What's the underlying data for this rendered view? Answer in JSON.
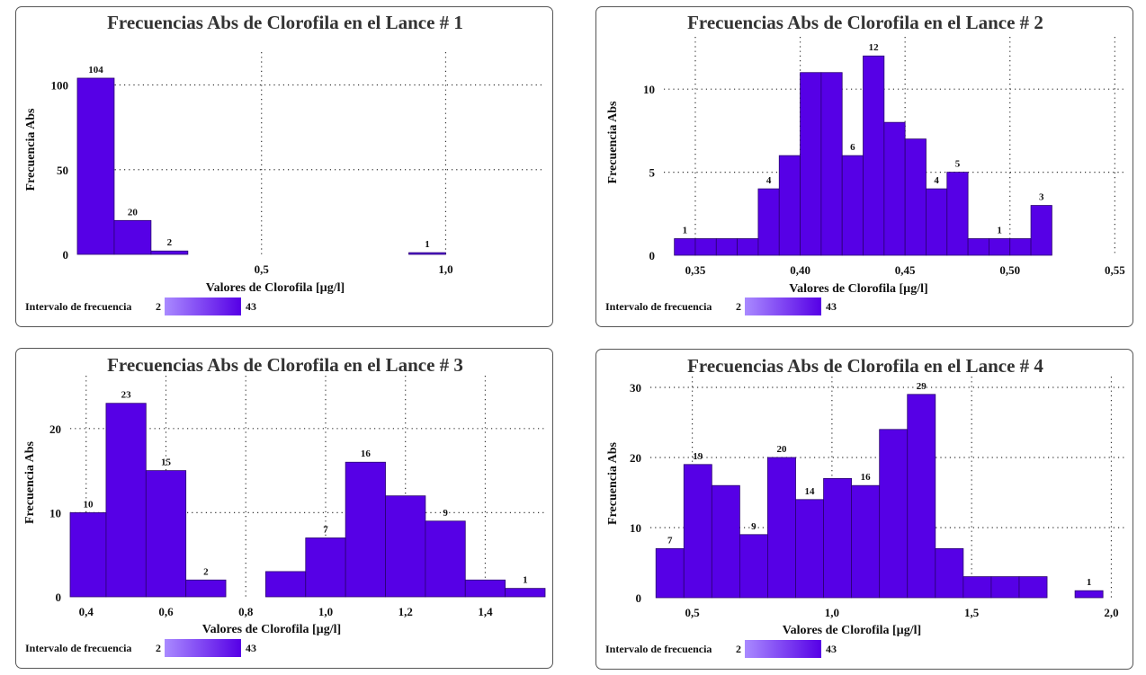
{
  "colors": {
    "bar": "#5600e6",
    "bar_stroke": "#2a0070",
    "legend_start": "#a98aff",
    "legend_end": "#5600e6"
  },
  "chart_data": [
    {
      "type": "bar",
      "title": "Frecuencias Abs de Clorofila en el Lance # 1",
      "xlabel": "Valores de Clorofila [µg/l]",
      "ylabel": "Frecuencia Abs",
      "xlim": [
        0.0,
        1.27
      ],
      "ylim": [
        0,
        113
      ],
      "xticks": [
        {
          "v": 0.5,
          "label": "0,5"
        },
        {
          "v": 1.0,
          "label": "1,0"
        }
      ],
      "yticks": [
        {
          "v": 0,
          "label": "0"
        },
        {
          "v": 50,
          "label": "50"
        },
        {
          "v": 100,
          "label": "100"
        }
      ],
      "grid": true,
      "bins": [
        {
          "x0": 0.0,
          "x1": 0.1,
          "value": 104,
          "label": "104"
        },
        {
          "x0": 0.1,
          "x1": 0.2,
          "value": 20,
          "label": "20"
        },
        {
          "x0": 0.2,
          "x1": 0.3,
          "value": 2,
          "label": "2"
        },
        {
          "x0": 0.9,
          "x1": 1.0,
          "value": 1,
          "label": "1"
        }
      ],
      "legend": {
        "label": "Intervalo de frecuencia",
        "min": "2",
        "max": "43"
      }
    },
    {
      "type": "bar",
      "title": "Frecuencias Abs de Clorofila en el Lance # 2",
      "xlabel": "Valores de Clorofila [µg/l]",
      "ylabel": "Frecuencia Abs",
      "xlim": [
        0.335,
        0.555
      ],
      "ylim": [
        0,
        12.5
      ],
      "xticks": [
        {
          "v": 0.35,
          "label": "0,35"
        },
        {
          "v": 0.4,
          "label": "0,40"
        },
        {
          "v": 0.45,
          "label": "0,45"
        },
        {
          "v": 0.5,
          "label": "0,50"
        },
        {
          "v": 0.55,
          "label": "0,55"
        }
      ],
      "yticks": [
        {
          "v": 0,
          "label": "0"
        },
        {
          "v": 5,
          "label": "5"
        },
        {
          "v": 10,
          "label": "10"
        }
      ],
      "grid": true,
      "bins": [
        {
          "x0": 0.34,
          "x1": 0.35,
          "value": 1,
          "label": "1"
        },
        {
          "x0": 0.35,
          "x1": 0.36,
          "value": 1,
          "label": ""
        },
        {
          "x0": 0.36,
          "x1": 0.37,
          "value": 1,
          "label": ""
        },
        {
          "x0": 0.37,
          "x1": 0.38,
          "value": 1,
          "label": ""
        },
        {
          "x0": 0.38,
          "x1": 0.39,
          "value": 4,
          "label": "4"
        },
        {
          "x0": 0.39,
          "x1": 0.4,
          "value": 6,
          "label": ""
        },
        {
          "x0": 0.4,
          "x1": 0.41,
          "value": 11,
          "label": ""
        },
        {
          "x0": 0.41,
          "x1": 0.42,
          "value": 11,
          "label": ""
        },
        {
          "x0": 0.42,
          "x1": 0.43,
          "value": 6,
          "label": "6"
        },
        {
          "x0": 0.43,
          "x1": 0.44,
          "value": 12,
          "label": "12"
        },
        {
          "x0": 0.44,
          "x1": 0.45,
          "value": 8,
          "label": ""
        },
        {
          "x0": 0.45,
          "x1": 0.46,
          "value": 7,
          "label": ""
        },
        {
          "x0": 0.46,
          "x1": 0.47,
          "value": 4,
          "label": "4"
        },
        {
          "x0": 0.47,
          "x1": 0.48,
          "value": 5,
          "label": "5"
        },
        {
          "x0": 0.48,
          "x1": 0.49,
          "value": 1,
          "label": ""
        },
        {
          "x0": 0.49,
          "x1": 0.5,
          "value": 1,
          "label": "1"
        },
        {
          "x0": 0.5,
          "x1": 0.51,
          "value": 1,
          "label": ""
        },
        {
          "x0": 0.51,
          "x1": 0.52,
          "value": 3,
          "label": "3"
        }
      ],
      "legend": {
        "label": "Intervalo de frecuencia",
        "min": "2",
        "max": "43"
      }
    },
    {
      "type": "bar",
      "title": "Frecuencias Abs de Clorofila en el Lance # 3",
      "xlabel": "Valores de Clorofila [µg/l]",
      "ylabel": "Frecuencia Abs",
      "xlim": [
        0.36,
        1.55
      ],
      "ylim": [
        0,
        25
      ],
      "xticks": [
        {
          "v": 0.4,
          "label": "0,4"
        },
        {
          "v": 0.6,
          "label": "0,6"
        },
        {
          "v": 0.8,
          "label": "0,8"
        },
        {
          "v": 1.0,
          "label": "1,0"
        },
        {
          "v": 1.2,
          "label": "1,2"
        },
        {
          "v": 1.4,
          "label": "1,4"
        }
      ],
      "yticks": [
        {
          "v": 0,
          "label": "0"
        },
        {
          "v": 10,
          "label": "10"
        },
        {
          "v": 20,
          "label": "20"
        }
      ],
      "grid": true,
      "bins": [
        {
          "x0": 0.36,
          "x1": 0.45,
          "value": 10,
          "label": "10"
        },
        {
          "x0": 0.45,
          "x1": 0.55,
          "value": 23,
          "label": "23"
        },
        {
          "x0": 0.55,
          "x1": 0.65,
          "value": 15,
          "label": "15"
        },
        {
          "x0": 0.65,
          "x1": 0.75,
          "value": 2,
          "label": "2"
        },
        {
          "x0": 0.85,
          "x1": 0.95,
          "value": 3,
          "label": ""
        },
        {
          "x0": 0.95,
          "x1": 1.05,
          "value": 7,
          "label": "7"
        },
        {
          "x0": 1.05,
          "x1": 1.15,
          "value": 16,
          "label": "16"
        },
        {
          "x0": 1.15,
          "x1": 1.25,
          "value": 12,
          "label": ""
        },
        {
          "x0": 1.25,
          "x1": 1.35,
          "value": 9,
          "label": "9"
        },
        {
          "x0": 1.35,
          "x1": 1.45,
          "value": 2,
          "label": ""
        },
        {
          "x0": 1.45,
          "x1": 1.55,
          "value": 1,
          "label": "1"
        }
      ],
      "legend": {
        "label": "Intervalo de frecuencia",
        "min": "2",
        "max": "43"
      }
    },
    {
      "type": "bar",
      "title": "Frecuencias Abs de Clorofila en el Lance # 4",
      "xlabel": "Valores de Clorofila [µg/l]",
      "ylabel": "Frecuencia Abs",
      "xlim": [
        0.35,
        2.05
      ],
      "ylim": [
        0,
        30
      ],
      "xticks": [
        {
          "v": 0.5,
          "label": "0,5"
        },
        {
          "v": 1.0,
          "label": "1,0"
        },
        {
          "v": 1.5,
          "label": "1,5"
        },
        {
          "v": 2.0,
          "label": "2,0"
        }
      ],
      "yticks": [
        {
          "v": 0,
          "label": "0"
        },
        {
          "v": 10,
          "label": "10"
        },
        {
          "v": 20,
          "label": "20"
        },
        {
          "v": 30,
          "label": "30"
        }
      ],
      "grid": true,
      "bins": [
        {
          "x0": 0.37,
          "x1": 0.47,
          "value": 7,
          "label": "7"
        },
        {
          "x0": 0.47,
          "x1": 0.57,
          "value": 19,
          "label": "19"
        },
        {
          "x0": 0.57,
          "x1": 0.67,
          "value": 16,
          "label": ""
        },
        {
          "x0": 0.67,
          "x1": 0.77,
          "value": 9,
          "label": "9"
        },
        {
          "x0": 0.77,
          "x1": 0.87,
          "value": 20,
          "label": "20"
        },
        {
          "x0": 0.87,
          "x1": 0.97,
          "value": 14,
          "label": "14"
        },
        {
          "x0": 0.97,
          "x1": 1.07,
          "value": 17,
          "label": ""
        },
        {
          "x0": 1.07,
          "x1": 1.17,
          "value": 16,
          "label": "16"
        },
        {
          "x0": 1.17,
          "x1": 1.27,
          "value": 24,
          "label": ""
        },
        {
          "x0": 1.27,
          "x1": 1.37,
          "value": 29,
          "label": "29"
        },
        {
          "x0": 1.37,
          "x1": 1.47,
          "value": 7,
          "label": ""
        },
        {
          "x0": 1.47,
          "x1": 1.57,
          "value": 3,
          "label": ""
        },
        {
          "x0": 1.57,
          "x1": 1.67,
          "value": 3,
          "label": ""
        },
        {
          "x0": 1.67,
          "x1": 1.77,
          "value": 3,
          "label": ""
        },
        {
          "x0": 1.87,
          "x1": 1.97,
          "value": 1,
          "label": "1"
        }
      ],
      "legend": {
        "label": "Intervalo de frecuencia",
        "min": "2",
        "max": "43"
      }
    }
  ]
}
